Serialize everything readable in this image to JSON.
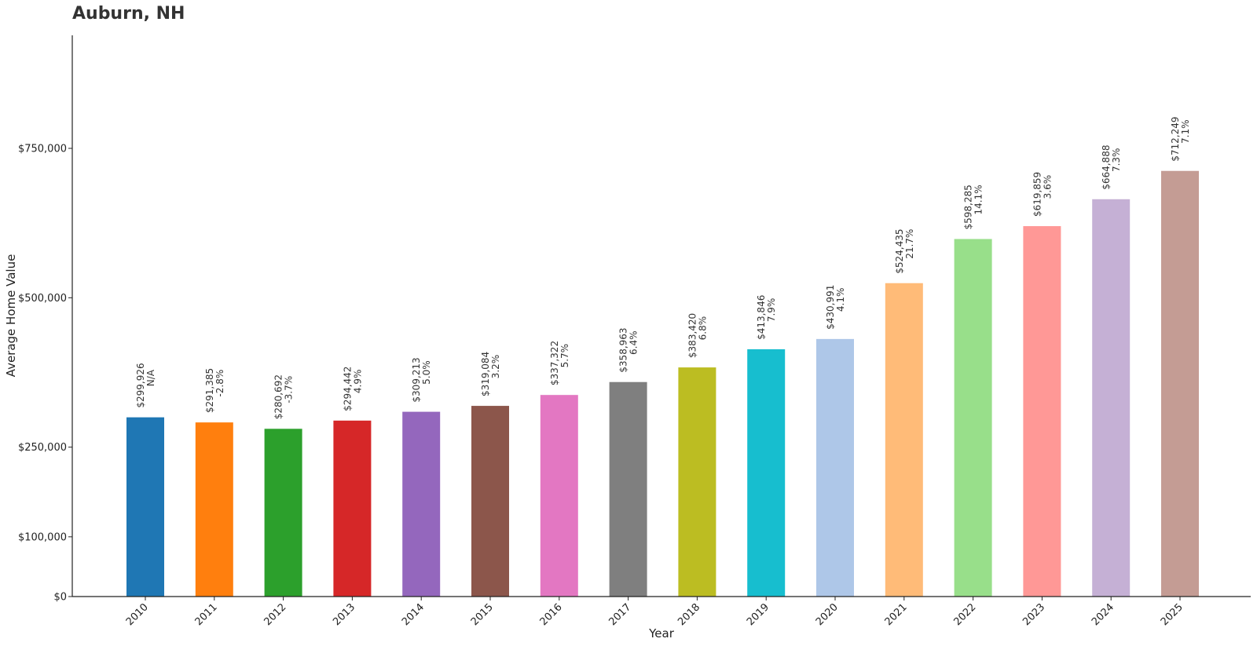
{
  "chart_data": {
    "type": "bar",
    "title": "Auburn, NH",
    "xlabel": "Year",
    "ylabel": "Average Home Value",
    "categories": [
      "2010",
      "2011",
      "2012",
      "2013",
      "2014",
      "2015",
      "2016",
      "2017",
      "2018",
      "2019",
      "2020",
      "2021",
      "2022",
      "2023",
      "2024",
      "2025"
    ],
    "values": [
      299926,
      291385,
      280692,
      294442,
      309213,
      319084,
      337322,
      358963,
      383420,
      413846,
      430991,
      524435,
      598285,
      619859,
      664888,
      712249
    ],
    "value_labels": [
      "$299,926",
      "$291,385",
      "$280,692",
      "$294,442",
      "$309,213",
      "$319,084",
      "$337,322",
      "$358,963",
      "$383,420",
      "$413,846",
      "$430,991",
      "$524,435",
      "$598,285",
      "$619,859",
      "$664,888",
      "$712,249"
    ],
    "change_labels": [
      "N/A",
      "-2.8%",
      "-3.7%",
      "4.9%",
      "5.0%",
      "3.2%",
      "5.7%",
      "6.4%",
      "6.8%",
      "7.9%",
      "4.1%",
      "21.7%",
      "14.1%",
      "3.6%",
      "7.3%",
      "7.1%"
    ],
    "colors": [
      "#1f77b4",
      "#ff7f0e",
      "#2ca02c",
      "#d62728",
      "#9467bd",
      "#8c564b",
      "#e377c2",
      "#7f7f7f",
      "#bcbd22",
      "#17becf",
      "#aec7e8",
      "#ffbb78",
      "#98df8a",
      "#ff9896",
      "#c5b0d5",
      "#c49c94"
    ],
    "yticks": [
      0,
      100000,
      250000,
      500000,
      750000
    ],
    "ytick_labels": [
      "$0",
      "$100,000",
      "$250,000",
      "$500,000",
      "$750,000"
    ],
    "ylim": [
      0,
      940000
    ],
    "grid": false,
    "legend": "none"
  }
}
